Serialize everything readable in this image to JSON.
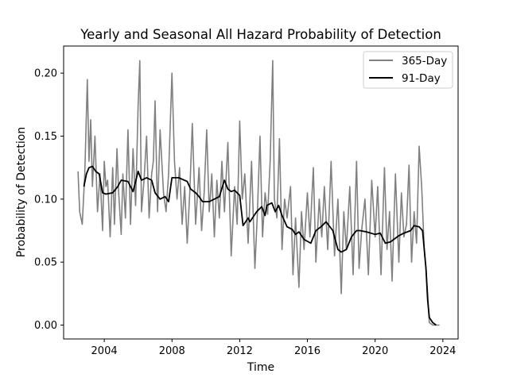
{
  "chart_data": {
    "type": "line",
    "title": "Yearly and Seasonal All Hazard Probability of Detection",
    "xlabel": "Time",
    "ylabel": "Probability of Detection",
    "xlim": [
      2001.6,
      2024.9
    ],
    "ylim": [
      -0.011,
      0.2215
    ],
    "x_ticks": [
      2004,
      2008,
      2012,
      2016,
      2020,
      2024
    ],
    "x_tick_labels": [
      "2004",
      "2008",
      "2012",
      "2016",
      "2020",
      "2024"
    ],
    "y_ticks": [
      0.0,
      0.05,
      0.1,
      0.15,
      0.2
    ],
    "y_tick_labels": [
      "0.00",
      "0.05",
      "0.10",
      "0.15",
      "0.20"
    ],
    "grid": false,
    "legend_position": "top-right",
    "series": [
      {
        "name": "365-Day",
        "color": "#808080",
        "x": [
          2002.45,
          2002.55,
          2002.7,
          2002.85,
          2003.0,
          2003.1,
          2003.2,
          2003.3,
          2003.45,
          2003.6,
          2003.75,
          2003.9,
          2004.0,
          2004.1,
          2004.2,
          2004.35,
          2004.5,
          2004.6,
          2004.75,
          2004.85,
          2005.0,
          2005.1,
          2005.25,
          2005.4,
          2005.55,
          2005.7,
          2005.85,
          2006.0,
          2006.1,
          2006.2,
          2006.35,
          2006.5,
          2006.65,
          2006.8,
          2006.9,
          2007.0,
          2007.15,
          2007.3,
          2007.5,
          2007.65,
          2007.8,
          2008.0,
          2008.15,
          2008.3,
          2008.45,
          2008.6,
          2008.75,
          2008.9,
          2009.05,
          2009.2,
          2009.4,
          2009.6,
          2009.75,
          2009.9,
          2010.05,
          2010.2,
          2010.35,
          2010.5,
          2010.65,
          2010.8,
          2010.95,
          2011.1,
          2011.3,
          2011.5,
          2011.7,
          2011.85,
          2012.0,
          2012.15,
          2012.3,
          2012.5,
          2012.7,
          2012.9,
          2013.05,
          2013.2,
          2013.35,
          2013.5,
          2013.65,
          2013.8,
          2013.95,
          2014.05,
          2014.2,
          2014.35,
          2014.5,
          2014.65,
          2014.8,
          2015.0,
          2015.15,
          2015.3,
          2015.5,
          2015.65,
          2015.8,
          2016.0,
          2016.15,
          2016.35,
          2016.5,
          2016.7,
          2016.85,
          2017.0,
          2017.2,
          2017.4,
          2017.6,
          2017.8,
          2018.0,
          2018.15,
          2018.3,
          2018.5,
          2018.7,
          2018.9,
          2019.05,
          2019.2,
          2019.4,
          2019.6,
          2019.8,
          2020.0,
          2020.15,
          2020.35,
          2020.55,
          2020.7,
          2020.85,
          2021.0,
          2021.2,
          2021.4,
          2021.55,
          2021.7,
          2021.85,
          2022.0,
          2022.15,
          2022.3,
          2022.45,
          2022.6,
          2022.75,
          2022.9,
          2023.0,
          2023.1,
          2023.2,
          2023.4,
          2023.6,
          2023.8
        ],
        "y": [
          0.122,
          0.09,
          0.08,
          0.12,
          0.195,
          0.13,
          0.163,
          0.11,
          0.15,
          0.09,
          0.12,
          0.075,
          0.13,
          0.11,
          0.115,
          0.07,
          0.125,
          0.08,
          0.14,
          0.105,
          0.072,
          0.12,
          0.085,
          0.155,
          0.08,
          0.14,
          0.095,
          0.175,
          0.21,
          0.09,
          0.115,
          0.15,
          0.085,
          0.12,
          0.13,
          0.178,
          0.09,
          0.155,
          0.105,
          0.09,
          0.12,
          0.2,
          0.13,
          0.1,
          0.125,
          0.08,
          0.11,
          0.065,
          0.105,
          0.16,
          0.08,
          0.125,
          0.075,
          0.105,
          0.155,
          0.09,
          0.12,
          0.07,
          0.115,
          0.085,
          0.13,
          0.09,
          0.145,
          0.055,
          0.11,
          0.08,
          0.162,
          0.1,
          0.12,
          0.065,
          0.13,
          0.045,
          0.09,
          0.15,
          0.07,
          0.105,
          0.088,
          0.13,
          0.21,
          0.1,
          0.085,
          0.148,
          0.06,
          0.1,
          0.085,
          0.11,
          0.04,
          0.085,
          0.03,
          0.09,
          0.06,
          0.105,
          0.07,
          0.125,
          0.05,
          0.1,
          0.07,
          0.11,
          0.06,
          0.13,
          0.055,
          0.1,
          0.025,
          0.09,
          0.06,
          0.11,
          0.04,
          0.13,
          0.045,
          0.075,
          0.1,
          0.04,
          0.115,
          0.07,
          0.11,
          0.04,
          0.125,
          0.06,
          0.09,
          0.035,
          0.12,
          0.05,
          0.105,
          0.07,
          0.08,
          0.127,
          0.05,
          0.09,
          0.065,
          0.142,
          0.11,
          0.06,
          0.045,
          0.025,
          0.002,
          0.0,
          0.0,
          0.0
        ]
      },
      {
        "name": "91-Day",
        "color": "#000000",
        "x": [
          2002.8,
          2002.95,
          2003.1,
          2003.3,
          2003.5,
          2003.7,
          2003.9,
          2004.1,
          2004.5,
          2004.8,
          2005.0,
          2005.4,
          2005.7,
          2006.0,
          2006.2,
          2006.5,
          2006.8,
          2007.0,
          2007.3,
          2007.6,
          2007.8,
          2008.0,
          2008.4,
          2008.9,
          2009.1,
          2009.4,
          2009.6,
          2009.8,
          2010.2,
          2010.5,
          2010.8,
          2011.1,
          2011.3,
          2011.5,
          2011.7,
          2012.0,
          2012.2,
          2012.5,
          2012.6,
          2013.0,
          2013.3,
          2013.5,
          2013.6,
          2013.9,
          2014.1,
          2014.3,
          2014.5,
          2014.8,
          2015.1,
          2015.3,
          2015.5,
          2015.8,
          2016.2,
          2016.5,
          2016.8,
          2017.1,
          2017.5,
          2017.8,
          2018.0,
          2018.3,
          2018.6,
          2018.9,
          2019.1,
          2019.5,
          2020.0,
          2020.3,
          2020.6,
          2020.9,
          2021.1,
          2021.4,
          2021.7,
          2021.9,
          2022.1,
          2022.3,
          2022.6,
          2022.8,
          2023.0,
          2023.1,
          2023.2,
          2023.4,
          2023.6
        ],
        "y": [
          0.11,
          0.12,
          0.125,
          0.126,
          0.122,
          0.12,
          0.105,
          0.104,
          0.105,
          0.11,
          0.115,
          0.114,
          0.106,
          0.122,
          0.115,
          0.117,
          0.115,
          0.105,
          0.1,
          0.102,
          0.098,
          0.117,
          0.117,
          0.114,
          0.108,
          0.105,
          0.102,
          0.098,
          0.098,
          0.1,
          0.102,
          0.115,
          0.108,
          0.106,
          0.107,
          0.103,
          0.079,
          0.085,
          0.082,
          0.09,
          0.094,
          0.087,
          0.095,
          0.097,
          0.09,
          0.095,
          0.087,
          0.078,
          0.076,
          0.072,
          0.074,
          0.068,
          0.065,
          0.075,
          0.078,
          0.082,
          0.075,
          0.06,
          0.058,
          0.06,
          0.07,
          0.075,
          0.075,
          0.074,
          0.072,
          0.073,
          0.065,
          0.066,
          0.068,
          0.071,
          0.073,
          0.074,
          0.075,
          0.079,
          0.078,
          0.075,
          0.045,
          0.02,
          0.006,
          0.002,
          0.0
        ]
      }
    ]
  }
}
